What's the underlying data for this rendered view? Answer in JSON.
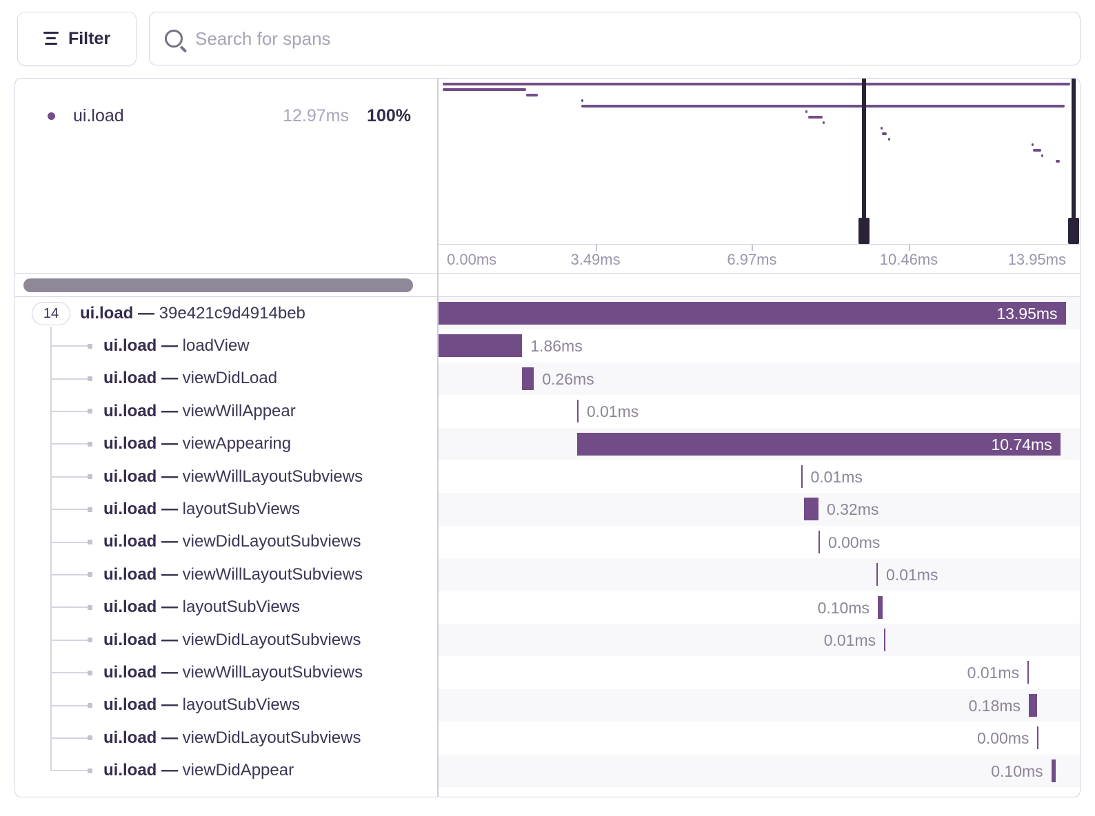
{
  "toolbar": {
    "filter_label": "Filter",
    "search_placeholder": "Search for spans"
  },
  "legend": {
    "op": "ui.load",
    "duration": "12.97ms",
    "percent": "100%"
  },
  "axis": {
    "tick_labels": [
      "0.00ms",
      "3.49ms",
      "6.97ms",
      "10.46ms",
      "13.95ms"
    ],
    "tick_values_ms": [
      0.0,
      3.49,
      6.97,
      10.46,
      13.95
    ]
  },
  "root": {
    "child_count": "14"
  },
  "colors": {
    "span_bar": "#714c86",
    "minimap_handle": "#2a2337",
    "row_alt_bg": "#f8f7fa",
    "label_gray": "#8d8699",
    "text_dark": "#3d3554",
    "legend_dot": "#744e88",
    "border": "#dad5e2"
  },
  "chart_data": {
    "type": "spans-waterfall",
    "title": "",
    "total_duration_ms": 13.95,
    "x_range_ms": [
      0,
      13.95
    ],
    "rows": [
      {
        "op": "ui.load",
        "name": "39e421c9d4914beb",
        "duration_label": "13.95ms",
        "start_ms": 0.0,
        "duration_ms": 13.95,
        "label_pos": "inside",
        "depth": 0
      },
      {
        "op": "ui.load",
        "name": "loadView",
        "duration_label": "1.86ms",
        "start_ms": 0.0,
        "duration_ms": 1.86,
        "label_pos": "right",
        "depth": 1
      },
      {
        "op": "ui.load",
        "name": "viewDidLoad",
        "duration_label": "0.26ms",
        "start_ms": 1.86,
        "duration_ms": 0.26,
        "label_pos": "right",
        "depth": 1
      },
      {
        "op": "ui.load",
        "name": "viewWillAppear",
        "duration_label": "0.01ms",
        "start_ms": 3.08,
        "duration_ms": 0.01,
        "label_pos": "right",
        "depth": 1
      },
      {
        "op": "ui.load",
        "name": "viewAppearing",
        "duration_label": "10.74ms",
        "start_ms": 3.09,
        "duration_ms": 10.74,
        "label_pos": "inside",
        "depth": 1
      },
      {
        "op": "ui.load",
        "name": "viewWillLayoutSubviews",
        "duration_label": "0.01ms",
        "start_ms": 8.06,
        "duration_ms": 0.01,
        "label_pos": "right",
        "depth": 1
      },
      {
        "op": "ui.load",
        "name": "layoutSubViews",
        "duration_label": "0.32ms",
        "start_ms": 8.13,
        "duration_ms": 0.32,
        "label_pos": "right",
        "depth": 1
      },
      {
        "op": "ui.load",
        "name": "viewDidLayoutSubviews",
        "duration_label": "0.00ms",
        "start_ms": 8.45,
        "duration_ms": 0.005,
        "label_pos": "right",
        "depth": 1
      },
      {
        "op": "ui.load",
        "name": "viewWillLayoutSubviews",
        "duration_label": "0.01ms",
        "start_ms": 9.74,
        "duration_ms": 0.01,
        "label_pos": "right",
        "depth": 1
      },
      {
        "op": "ui.load",
        "name": "layoutSubViews",
        "duration_label": "0.10ms",
        "start_ms": 9.77,
        "duration_ms": 0.1,
        "label_pos": "left",
        "depth": 1
      },
      {
        "op": "ui.load",
        "name": "viewDidLayoutSubviews",
        "duration_label": "0.01ms",
        "start_ms": 9.91,
        "duration_ms": 0.01,
        "label_pos": "left",
        "depth": 1
      },
      {
        "op": "ui.load",
        "name": "viewWillLayoutSubviews",
        "duration_label": "0.01ms",
        "start_ms": 13.1,
        "duration_ms": 0.01,
        "label_pos": "left",
        "depth": 1
      },
      {
        "op": "ui.load",
        "name": "layoutSubViews",
        "duration_label": "0.18ms",
        "start_ms": 13.13,
        "duration_ms": 0.18,
        "label_pos": "left",
        "depth": 1
      },
      {
        "op": "ui.load",
        "name": "viewDidLayoutSubviews",
        "duration_label": "0.00ms",
        "start_ms": 13.32,
        "duration_ms": 0.005,
        "label_pos": "left",
        "depth": 1
      },
      {
        "op": "ui.load",
        "name": "viewDidAppear",
        "duration_label": "0.10ms",
        "start_ms": 13.63,
        "duration_ms": 0.1,
        "label_pos": "left",
        "depth": 1
      }
    ]
  }
}
